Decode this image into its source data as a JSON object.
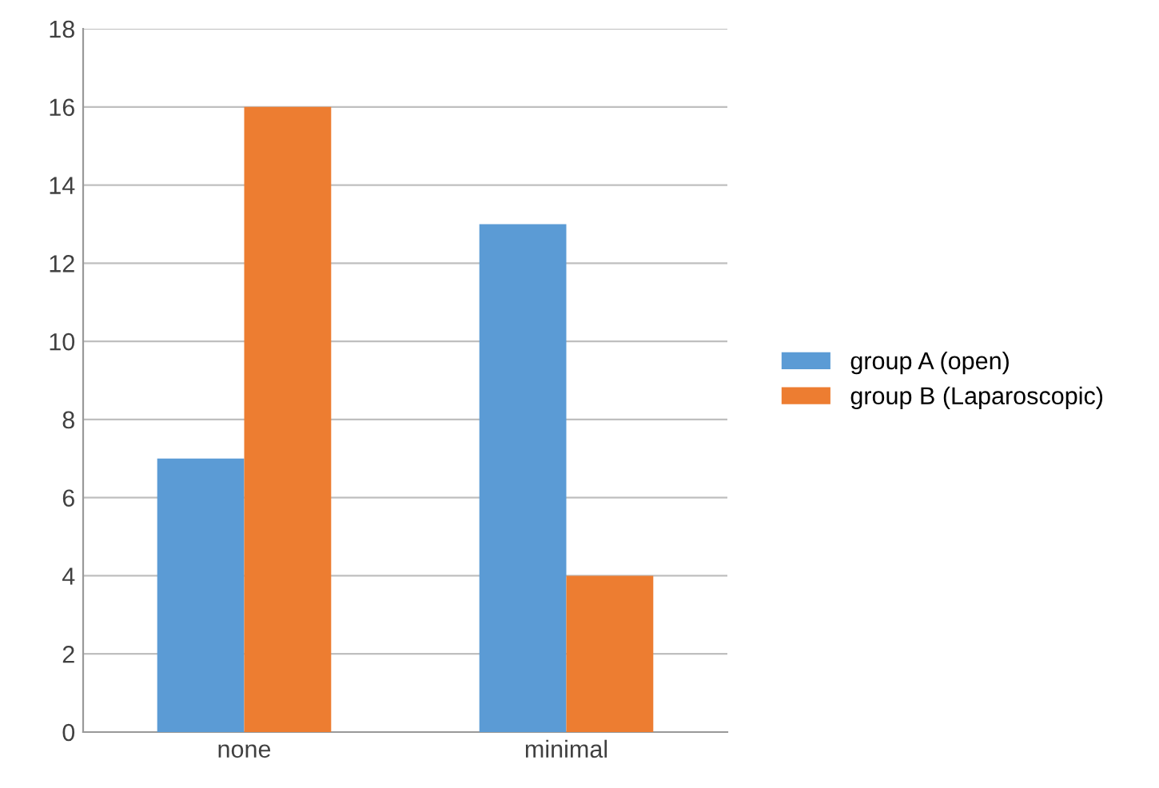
{
  "chart_data": {
    "type": "bar",
    "categories": [
      "none",
      "minimal"
    ],
    "series": [
      {
        "name": "group A (open)",
        "color": "#5b9bd5",
        "values": [
          7,
          13
        ]
      },
      {
        "name": "group B (Laparoscopic)",
        "color": "#ed7d31",
        "values": [
          16,
          4
        ]
      }
    ],
    "ylim": [
      0,
      18
    ],
    "yticks": [
      0,
      2,
      4,
      6,
      8,
      10,
      12,
      14,
      16,
      18
    ],
    "grid": "y",
    "legend": "right"
  }
}
